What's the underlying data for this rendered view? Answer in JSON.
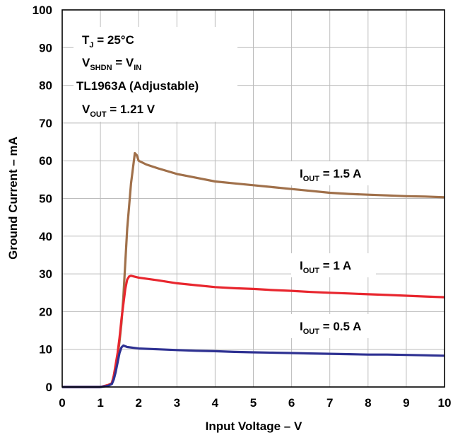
{
  "chart_data": {
    "type": "line",
    "xlabel": "Input Voltage – V",
    "ylabel": "Ground Current – mA",
    "xlim": [
      0,
      10
    ],
    "ylim": [
      0,
      100
    ],
    "x_ticks": [
      "0",
      "1",
      "2",
      "3",
      "4",
      "5",
      "6",
      "7",
      "8",
      "9",
      "10"
    ],
    "y_ticks": [
      "0",
      "10",
      "20",
      "30",
      "40",
      "50",
      "60",
      "70",
      "80",
      "90",
      "100"
    ],
    "grid": true,
    "conditions": {
      "tj": {
        "main": "T",
        "sub": "J",
        "rest": " = 25°C"
      },
      "vshdn": {
        "main": "V",
        "sub": "SHDN",
        "rest": " = V",
        "sub2": "IN"
      },
      "device": "TL1963A (Adjustable)",
      "vout": {
        "main": "V",
        "sub": "OUT",
        "rest": " = 1.21 V"
      }
    },
    "series": [
      {
        "name": "I_OUT = 1.5 A",
        "label": {
          "main": "I",
          "sub": "OUT",
          "rest": " = 1.5 A"
        },
        "color": "#a0704a",
        "x": [
          0,
          0.6,
          1.0,
          1.2,
          1.3,
          1.35,
          1.4,
          1.45,
          1.5,
          1.55,
          1.6,
          1.65,
          1.7,
          1.75,
          1.8,
          1.85,
          1.9,
          1.95,
          2.0,
          2.2,
          2.5,
          3.0,
          3.5,
          4.0,
          4.5,
          5.0,
          5.5,
          6.0,
          6.5,
          7.0,
          7.5,
          8.0,
          8.5,
          9.0,
          9.5,
          10.0
        ],
        "y": [
          0,
          0,
          0,
          0.5,
          1,
          3,
          5,
          8,
          12,
          17,
          24,
          33,
          42,
          48,
          54,
          58,
          62,
          61.5,
          60,
          59,
          58,
          56.5,
          55.5,
          54.5,
          54,
          53.5,
          53,
          52.5,
          52,
          51.5,
          51.2,
          51,
          50.8,
          50.6,
          50.5,
          50.3
        ]
      },
      {
        "name": "I_OUT = 1 A",
        "label": {
          "main": "I",
          "sub": "OUT",
          "rest": " = 1 A"
        },
        "color": "#e8262e",
        "x": [
          0,
          0.6,
          1.0,
          1.2,
          1.3,
          1.35,
          1.4,
          1.45,
          1.5,
          1.55,
          1.6,
          1.65,
          1.7,
          1.75,
          1.8,
          2.0,
          2.5,
          3.0,
          3.5,
          4.0,
          4.5,
          5.0,
          5.5,
          6.0,
          6.5,
          7.0,
          7.5,
          8.0,
          8.5,
          9.0,
          9.5,
          10.0
        ],
        "y": [
          0,
          0,
          0,
          0.5,
          1,
          3,
          6,
          9,
          13,
          18,
          22,
          26,
          28.5,
          29.3,
          29.5,
          29,
          28.3,
          27.5,
          27,
          26.5,
          26.2,
          26,
          25.7,
          25.5,
          25.2,
          25,
          24.8,
          24.6,
          24.4,
          24.2,
          24,
          23.8
        ]
      },
      {
        "name": "I_OUT = 0.5 A",
        "label": {
          "main": "I",
          "sub": "OUT",
          "rest": " = 0.5 A"
        },
        "color": "#2e3192",
        "x": [
          0,
          0.6,
          1.0,
          1.2,
          1.3,
          1.35,
          1.4,
          1.45,
          1.5,
          1.55,
          1.6,
          1.7,
          2.0,
          2.5,
          3.0,
          3.5,
          4.0,
          4.5,
          5.0,
          5.5,
          6.0,
          6.5,
          7.0,
          7.5,
          8.0,
          8.5,
          9.0,
          9.5,
          10.0
        ],
        "y": [
          0,
          0,
          0,
          0.3,
          0.8,
          2,
          4,
          6.5,
          9,
          10.5,
          11,
          10.6,
          10.2,
          10,
          9.8,
          9.6,
          9.5,
          9.3,
          9.2,
          9.1,
          9,
          8.9,
          8.8,
          8.7,
          8.6,
          8.6,
          8.5,
          8.4,
          8.3
        ]
      }
    ]
  }
}
